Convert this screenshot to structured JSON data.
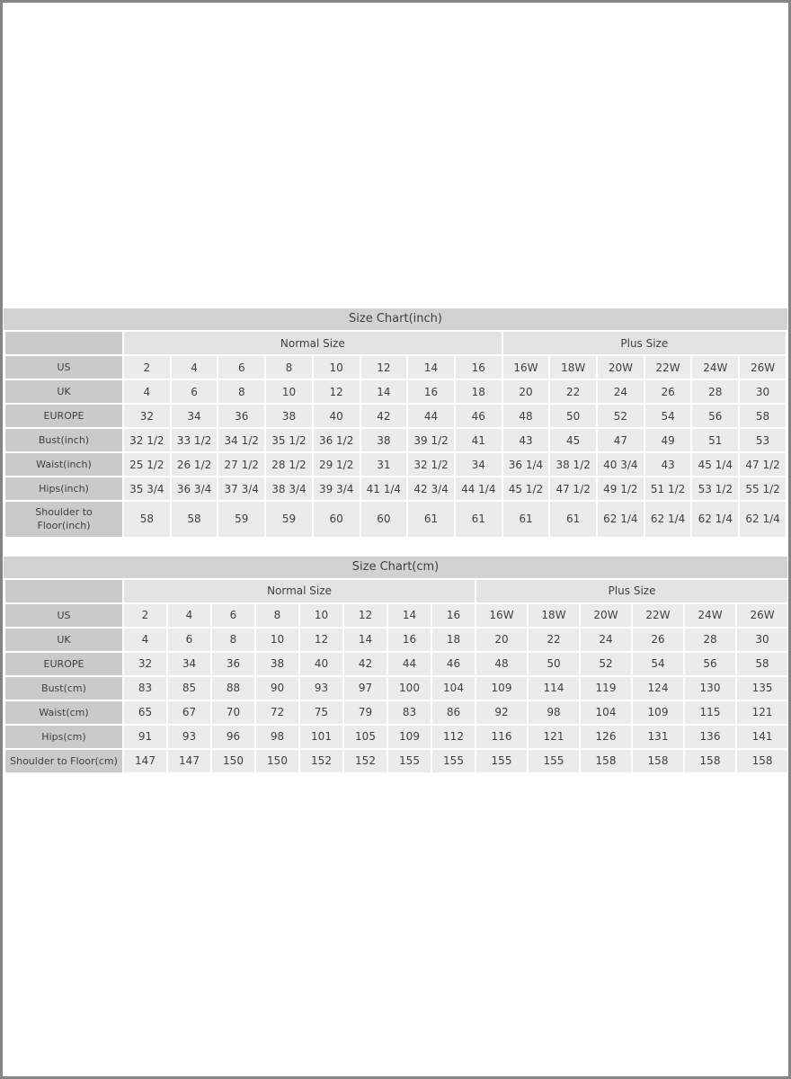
{
  "page": {
    "background": "#ffffff",
    "border_color": "#848484"
  },
  "palette": {
    "title_bar_bg": "#d2d2d2",
    "row_header_bg": "#cacaca",
    "group_header_bg": "#e3e3e3",
    "data_cell_bg": "#ebebeb",
    "cell_gap": "#ffffff",
    "text": "#3f3f3f"
  },
  "chart_data": [
    {
      "type": "table",
      "title": "Size Chart(inch)",
      "column_groups": [
        {
          "label": "Normal Size",
          "span": 8
        },
        {
          "label": "Plus Size",
          "span": 6
        }
      ],
      "rows": [
        {
          "header": "US",
          "values": [
            "2",
            "4",
            "6",
            "8",
            "10",
            "12",
            "14",
            "16",
            "16W",
            "18W",
            "20W",
            "22W",
            "24W",
            "26W"
          ]
        },
        {
          "header": "UK",
          "values": [
            "4",
            "6",
            "8",
            "10",
            "12",
            "14",
            "16",
            "18",
            "20",
            "22",
            "24",
            "26",
            "28",
            "30"
          ]
        },
        {
          "header": "EUROPE",
          "values": [
            "32",
            "34",
            "36",
            "38",
            "40",
            "42",
            "44",
            "46",
            "48",
            "50",
            "52",
            "54",
            "56",
            "58"
          ]
        },
        {
          "header": "Bust(inch)",
          "values": [
            "32 1/2",
            "33 1/2",
            "34 1/2",
            "35 1/2",
            "36 1/2",
            "38",
            "39 1/2",
            "41",
            "43",
            "45",
            "47",
            "49",
            "51",
            "53"
          ]
        },
        {
          "header": "Waist(inch)",
          "values": [
            "25 1/2",
            "26 1/2",
            "27 1/2",
            "28 1/2",
            "29 1/2",
            "31",
            "32 1/2",
            "34",
            "36 1/4",
            "38 1/2",
            "40 3/4",
            "43",
            "45 1/4",
            "47 1/2"
          ]
        },
        {
          "header": "Hips(inch)",
          "values": [
            "35 3/4",
            "36 3/4",
            "37 3/4",
            "38 3/4",
            "39 3/4",
            "41 1/4",
            "42 3/4",
            "44 1/4",
            "45 1/2",
            "47 1/2",
            "49 1/2",
            "51 1/2",
            "53 1/2",
            "55 1/2"
          ]
        },
        {
          "header": "Shoulder to Floor(inch)",
          "values": [
            "58",
            "58",
            "59",
            "59",
            "60",
            "60",
            "61",
            "61",
            "61",
            "61",
            "62 1/4",
            "62 1/4",
            "62 1/4",
            "62 1/4"
          ]
        }
      ]
    },
    {
      "type": "table",
      "title": "Size Chart(cm)",
      "column_groups": [
        {
          "label": "Normal Size",
          "span": 8
        },
        {
          "label": "Plus Size",
          "span": 6
        }
      ],
      "rows": [
        {
          "header": "US",
          "values": [
            "2",
            "4",
            "6",
            "8",
            "10",
            "12",
            "14",
            "16",
            "16W",
            "18W",
            "20W",
            "22W",
            "24W",
            "26W"
          ]
        },
        {
          "header": "UK",
          "values": [
            "4",
            "6",
            "8",
            "10",
            "12",
            "14",
            "16",
            "18",
            "20",
            "22",
            "24",
            "26",
            "28",
            "30"
          ]
        },
        {
          "header": "EUROPE",
          "values": [
            "32",
            "34",
            "36",
            "38",
            "40",
            "42",
            "44",
            "46",
            "48",
            "50",
            "52",
            "54",
            "56",
            "58"
          ]
        },
        {
          "header": "Bust(cm)",
          "values": [
            "83",
            "85",
            "88",
            "90",
            "93",
            "97",
            "100",
            "104",
            "109",
            "114",
            "119",
            "124",
            "130",
            "135"
          ]
        },
        {
          "header": "Waist(cm)",
          "values": [
            "65",
            "67",
            "70",
            "72",
            "75",
            "79",
            "83",
            "86",
            "92",
            "98",
            "104",
            "109",
            "115",
            "121"
          ]
        },
        {
          "header": "Hips(cm)",
          "values": [
            "91",
            "93",
            "96",
            "98",
            "101",
            "105",
            "109",
            "112",
            "116",
            "121",
            "126",
            "131",
            "136",
            "141"
          ]
        },
        {
          "header": "Shoulder to Floor(cm)",
          "values": [
            "147",
            "147",
            "150",
            "150",
            "152",
            "152",
            "155",
            "155",
            "155",
            "155",
            "158",
            "158",
            "158",
            "158"
          ]
        }
      ]
    }
  ]
}
